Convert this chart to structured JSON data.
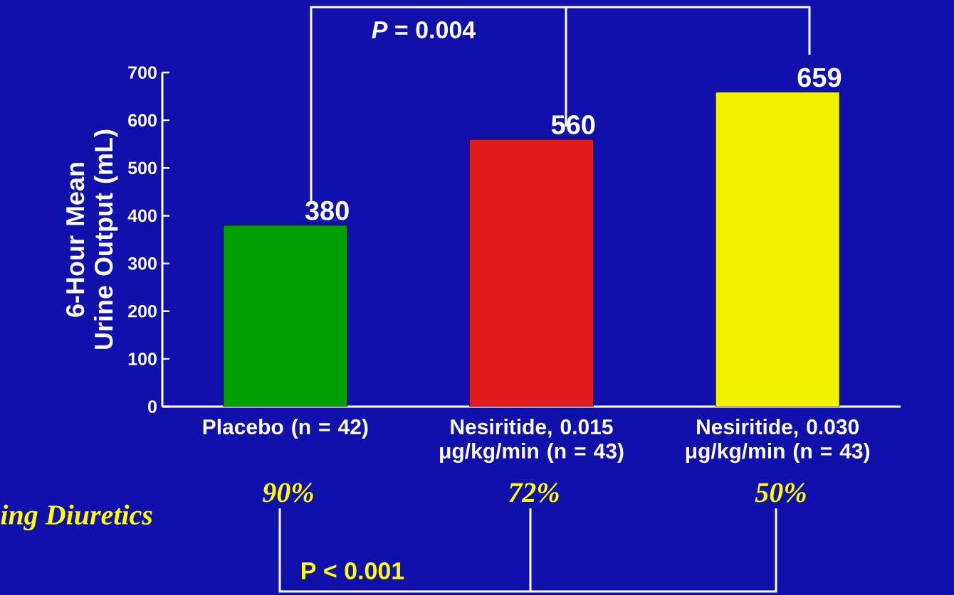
{
  "chart_data": {
    "type": "bar",
    "ylabel": "6-Hour Mean Urine Output (mL)",
    "categories": [
      "Placebo (n = 42)",
      "Nesiritide, 0.015 μg/kg/min (n = 43)",
      "Nesiritide, 0.030 μg/kg/min (n = 43)"
    ],
    "values": [
      380,
      560,
      659
    ],
    "colors": [
      "#00a000",
      "#e01a1a",
      "#f2f200"
    ],
    "ylim": [
      0,
      700
    ],
    "yticks": [
      0,
      100,
      200,
      300,
      400,
      500,
      600,
      700
    ],
    "data_labels": true,
    "annotations": [
      "*P* = 0.004",
      "P < 0.001",
      "90%",
      "72%",
      "50%",
      "ing Diuretics"
    ]
  }
}
